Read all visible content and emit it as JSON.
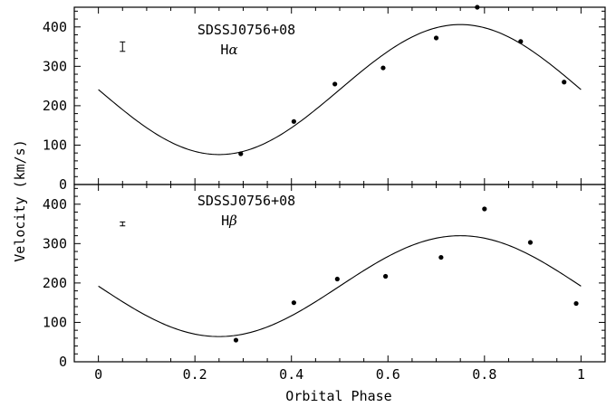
{
  "chart_data": {
    "type": "scatter",
    "xlabel": "Orbital Phase",
    "ylabel": "Velocity (km/s)",
    "xlim": [
      -0.05,
      1.05
    ],
    "xticks": [
      0,
      0.2,
      0.4,
      0.6,
      0.8,
      1
    ],
    "xticklabels": [
      "0",
      "0.2",
      "0.4",
      "0.6",
      "0.8",
      "1"
    ],
    "panels": [
      {
        "object": "SDSSJ0756+08",
        "line": "Hα",
        "line_element": "H",
        "line_greek": "α",
        "ylim": [
          0,
          450
        ],
        "yticks": [
          0,
          100,
          200,
          300,
          400
        ],
        "yticklabels": [
          "0",
          "100",
          "200",
          "300",
          "400"
        ],
        "points": {
          "x": [
            0.295,
            0.405,
            0.49,
            0.59,
            0.7,
            0.785,
            0.875,
            0.965
          ],
          "y": [
            78,
            160,
            255,
            296,
            372,
            450,
            363,
            260
          ]
        },
        "fit": {
          "gamma": 241,
          "K": 165,
          "phase_zero": 0.0
        },
        "error_bar": {
          "x": 0.05,
          "y": 350,
          "halfwidth": 12
        }
      },
      {
        "object": "SDSSJ0756+08",
        "line": "Hβ",
        "line_element": "H",
        "line_greek": "β",
        "ylim": [
          0,
          450
        ],
        "yticks": [
          0,
          100,
          200,
          300,
          400
        ],
        "yticklabels": [
          "0",
          "100",
          "200",
          "300",
          "400"
        ],
        "points": {
          "x": [
            0.285,
            0.405,
            0.495,
            0.595,
            0.71,
            0.8,
            0.895,
            0.99
          ],
          "y": [
            55,
            150,
            210,
            217,
            265,
            388,
            303,
            148
          ]
        },
        "fit": {
          "gamma": 192,
          "K": 128,
          "phase_zero": 0.0
        },
        "error_bar": {
          "x": 0.05,
          "y": 350,
          "halfwidth": 5
        }
      }
    ]
  }
}
